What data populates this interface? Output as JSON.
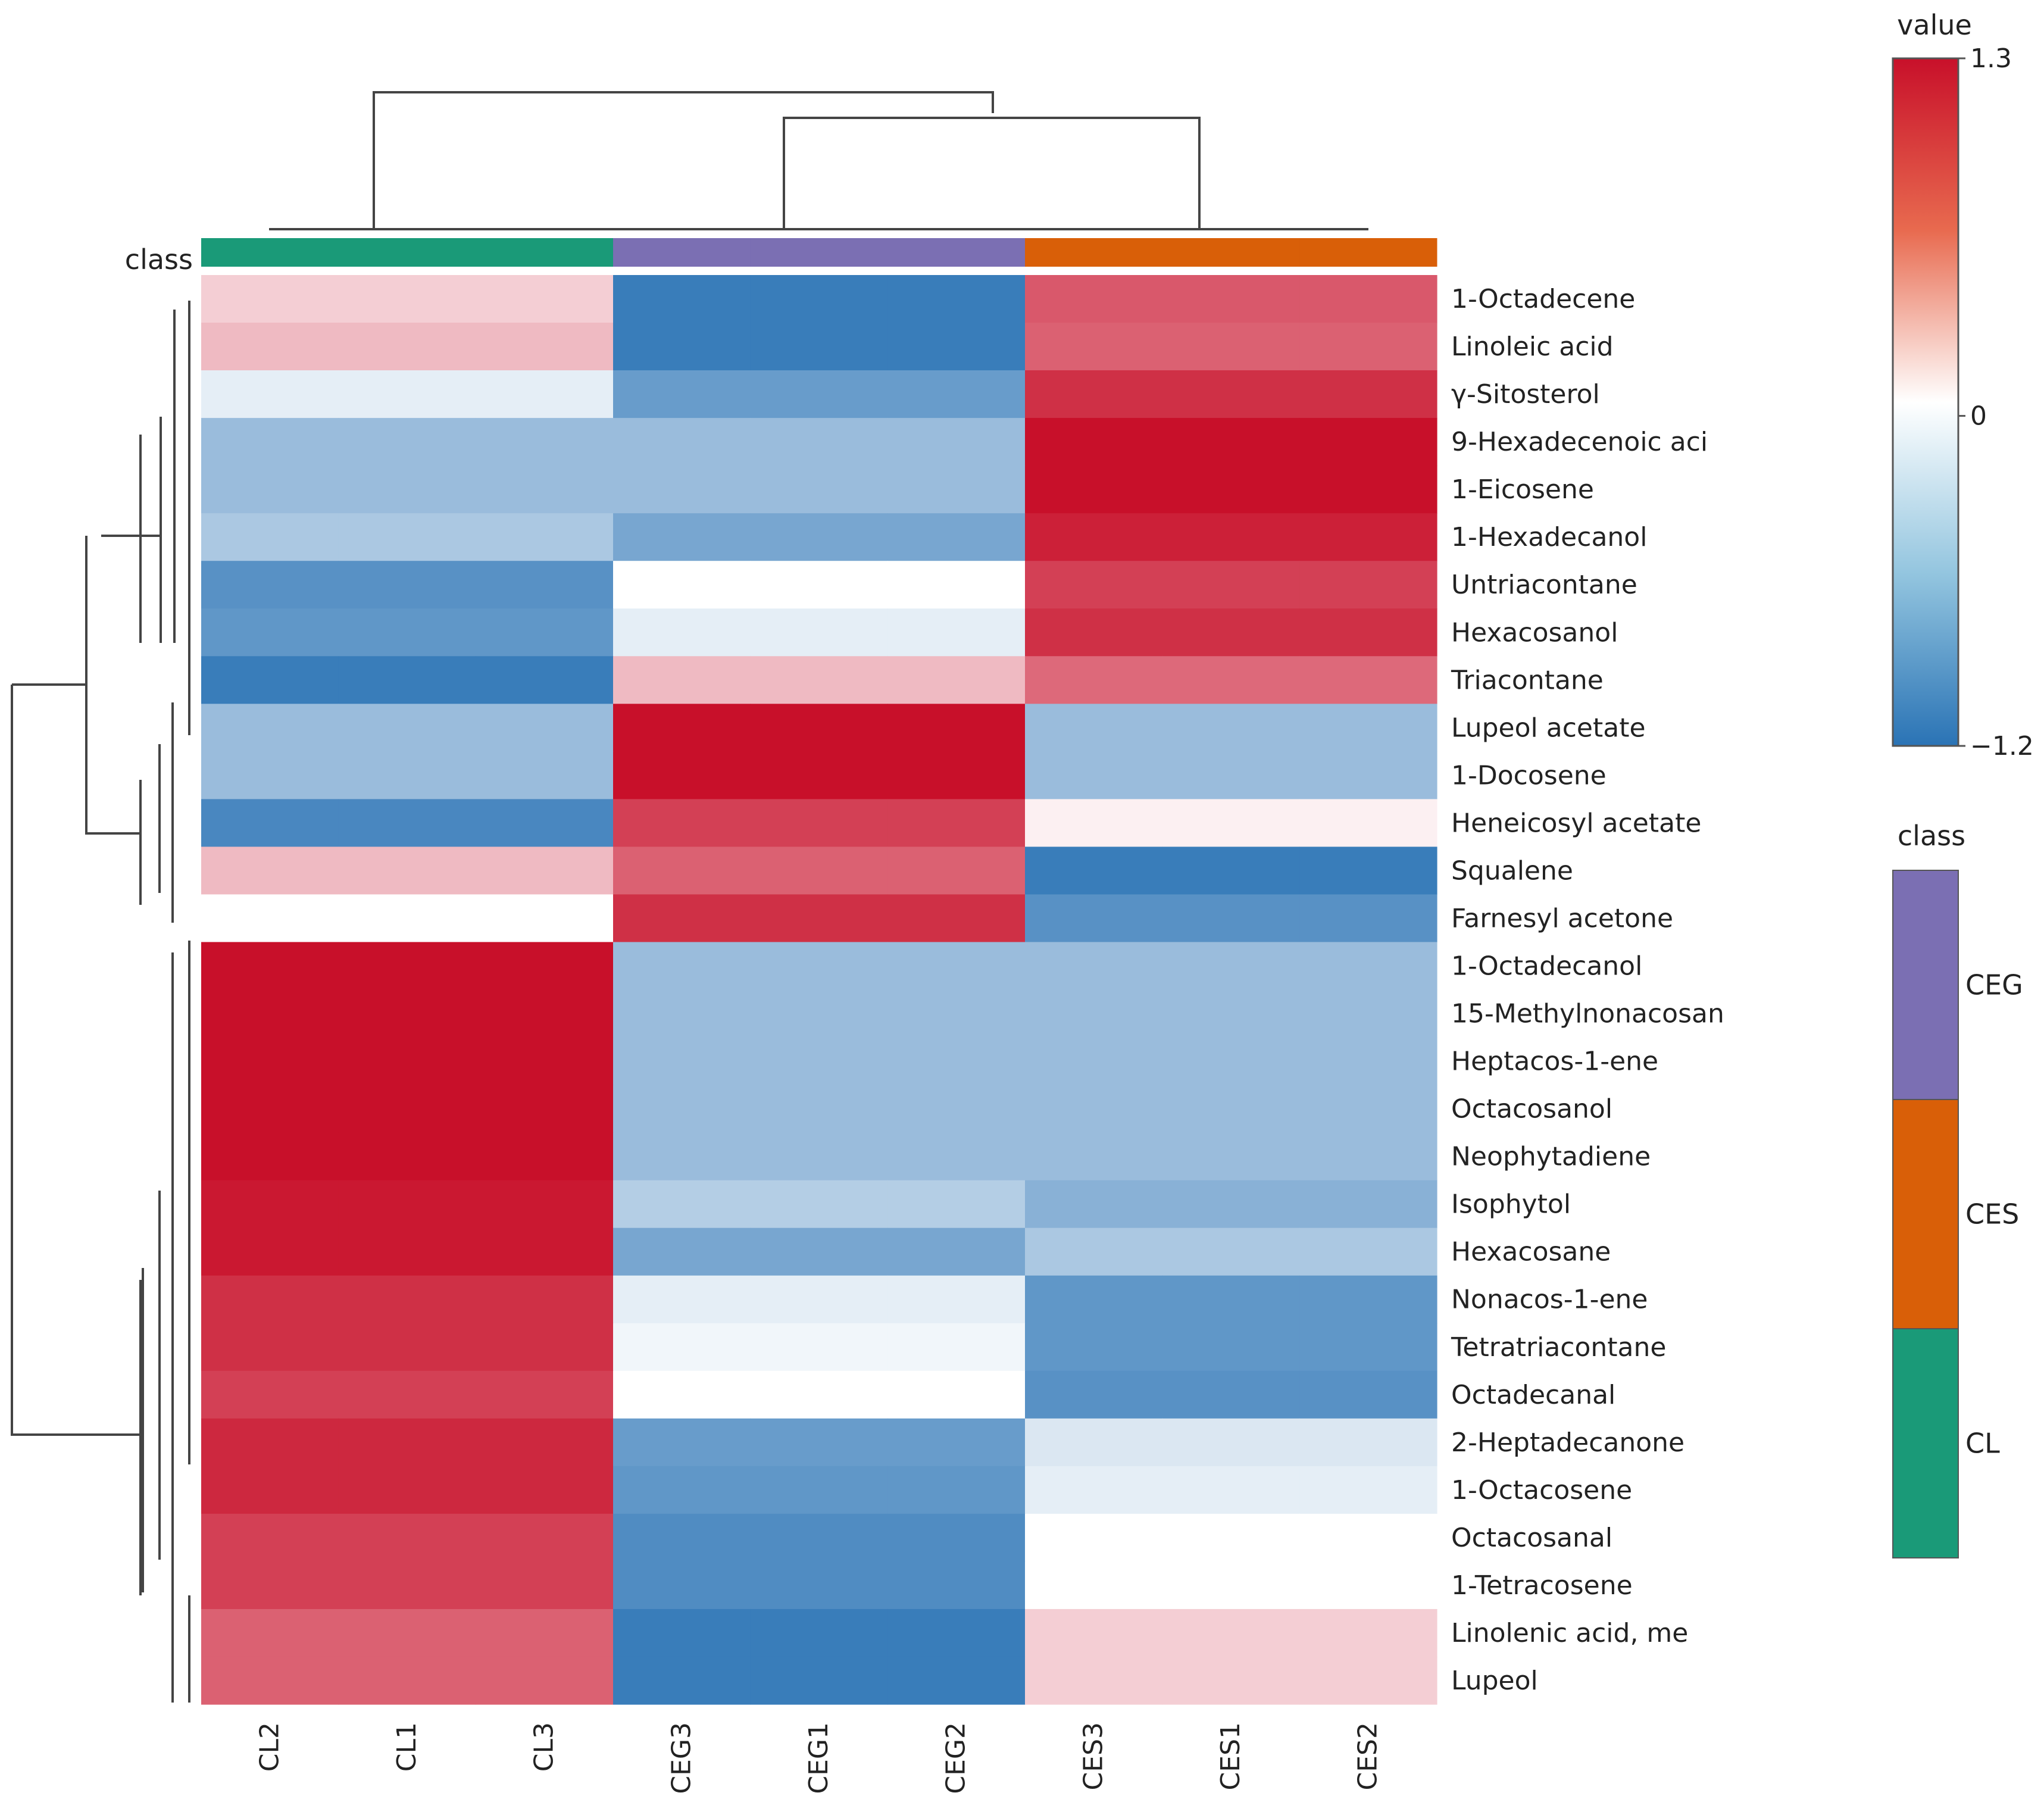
{
  "chart_data": {
    "type": "heatmap",
    "title": "",
    "class_label": "class",
    "columns": [
      "CL2",
      "CL1",
      "CL3",
      "CEG3",
      "CEG1",
      "CEG2",
      "CES3",
      "CES1",
      "CES2"
    ],
    "column_classes": [
      "CL",
      "CL",
      "CL",
      "CEG",
      "CEG",
      "CEG",
      "CES",
      "CES",
      "CES"
    ],
    "rows": [
      "1-Octadecene",
      "Linoleic acid",
      "γ-Sitosterol",
      "9-Hexadecenoic aci",
      "1-Eicosene",
      "1-Hexadecanol",
      "Untriacontane",
      "Hexacosanol",
      "Triacontane",
      "Lupeol acetate",
      "1-Docosene",
      "Heneicosyl acetate",
      "Squalene",
      "Farnesyl acetone",
      "1-Octadecanol",
      "15-Methylnonacosan",
      "Heptacos-1-ene",
      "Octacosanol",
      "Neophytadiene",
      "Isophytol",
      "Hexacosane",
      "Nonacos-1-ene",
      "Tetratriacontane",
      "Octadecanal",
      "2-Heptadecanone",
      "1-Octacosene",
      "Octacosanal",
      "1-Tetracosene",
      "Linolenic acid, me",
      "Lupeol"
    ],
    "values": [
      [
        0.2,
        0.2,
        0.2,
        -1.1,
        -1.1,
        -1.1,
        0.85,
        0.85,
        0.85
      ],
      [
        0.3,
        0.3,
        0.3,
        -1.1,
        -1.1,
        -1.1,
        0.8,
        0.8,
        0.8
      ],
      [
        -0.1,
        -0.1,
        -0.1,
        -0.8,
        -0.8,
        -0.8,
        1.1,
        1.1,
        1.1
      ],
      [
        -0.5,
        -0.5,
        -0.5,
        -0.5,
        -0.5,
        -0.5,
        1.3,
        1.3,
        1.3
      ],
      [
        -0.5,
        -0.5,
        -0.5,
        -0.5,
        -0.5,
        -0.5,
        1.3,
        1.3,
        1.3
      ],
      [
        -0.4,
        -0.4,
        -0.4,
        -0.7,
        -0.7,
        -0.7,
        1.2,
        1.2,
        1.2
      ],
      [
        -0.9,
        -0.9,
        -0.9,
        0.0,
        0.0,
        0.0,
        1.0,
        1.0,
        1.0
      ],
      [
        -0.85,
        -0.85,
        -0.85,
        -0.1,
        -0.1,
        -0.1,
        1.1,
        1.1,
        1.1
      ],
      [
        -1.1,
        -1.1,
        -1.1,
        0.3,
        0.3,
        0.3,
        0.75,
        0.75,
        0.75
      ],
      [
        -0.5,
        -0.5,
        -0.5,
        1.3,
        1.3,
        1.3,
        -0.5,
        -0.5,
        -0.5
      ],
      [
        -0.5,
        -0.5,
        -0.5,
        1.3,
        1.3,
        1.3,
        -0.5,
        -0.5,
        -0.5
      ],
      [
        -1.0,
        -1.0,
        -1.0,
        1.0,
        1.0,
        1.0,
        0.05,
        0.05,
        0.05
      ],
      [
        0.3,
        0.3,
        0.3,
        0.8,
        0.8,
        0.8,
        -1.1,
        -1.1,
        -1.1
      ],
      [
        0.0,
        0.0,
        0.0,
        1.1,
        1.1,
        1.1,
        -0.9,
        -0.9,
        -0.9
      ],
      [
        1.3,
        1.3,
        1.3,
        -0.5,
        -0.5,
        -0.5,
        -0.5,
        -0.5,
        -0.5
      ],
      [
        1.3,
        1.3,
        1.3,
        -0.5,
        -0.5,
        -0.5,
        -0.5,
        -0.5,
        -0.5
      ],
      [
        1.3,
        1.3,
        1.3,
        -0.5,
        -0.5,
        -0.5,
        -0.5,
        -0.5,
        -0.5
      ],
      [
        1.3,
        1.3,
        1.3,
        -0.5,
        -0.5,
        -0.5,
        -0.5,
        -0.5,
        -0.5
      ],
      [
        1.35,
        1.3,
        1.3,
        -0.5,
        -0.5,
        -0.5,
        -0.5,
        -0.5,
        -0.5
      ],
      [
        1.25,
        1.25,
        1.25,
        -0.35,
        -0.35,
        -0.35,
        -0.6,
        -0.6,
        -0.6
      ],
      [
        1.25,
        1.25,
        1.25,
        -0.7,
        -0.7,
        -0.7,
        -0.4,
        -0.4,
        -0.4
      ],
      [
        1.1,
        1.1,
        1.1,
        -0.1,
        -0.1,
        -0.1,
        -0.85,
        -0.85,
        -0.85
      ],
      [
        1.1,
        1.1,
        1.1,
        -0.05,
        -0.05,
        -0.05,
        -0.85,
        -0.85,
        -0.85
      ],
      [
        1.0,
        1.0,
        1.0,
        0.0,
        0.0,
        0.0,
        -0.9,
        -0.9,
        -0.9
      ],
      [
        1.15,
        1.15,
        1.15,
        -0.8,
        -0.8,
        -0.8,
        -0.15,
        -0.15,
        -0.15
      ],
      [
        1.15,
        1.15,
        1.15,
        -0.85,
        -0.85,
        -0.85,
        -0.1,
        -0.1,
        -0.1
      ],
      [
        1.0,
        1.0,
        1.0,
        -0.95,
        -0.95,
        -0.95,
        0.0,
        0.0,
        0.0
      ],
      [
        1.0,
        1.0,
        1.0,
        -0.95,
        -0.95,
        -0.95,
        0.0,
        0.0,
        0.0
      ],
      [
        0.8,
        0.8,
        0.8,
        -1.1,
        -1.1,
        -1.1,
        0.2,
        0.2,
        0.2
      ],
      [
        0.8,
        0.8,
        0.8,
        -1.1,
        -1.1,
        -1.1,
        0.2,
        0.2,
        0.2
      ]
    ],
    "value_range": [
      -1.2,
      1.3
    ],
    "colorbar": {
      "title": "value",
      "ticks": [
        "1.3",
        "0",
        "−1.2"
      ],
      "tick_values": [
        1.3,
        0,
        -1.2
      ]
    },
    "class_legend": {
      "title": "class",
      "entries": [
        "CEG",
        "CES",
        "CL"
      ]
    },
    "class_colors": {
      "CL": "#1a9a78",
      "CEG": "#7b6fb3",
      "CES": "#d95f08"
    },
    "colors": {
      "low": "#2a73b5",
      "mid": "#ffffff",
      "high": "#c8102a"
    }
  }
}
